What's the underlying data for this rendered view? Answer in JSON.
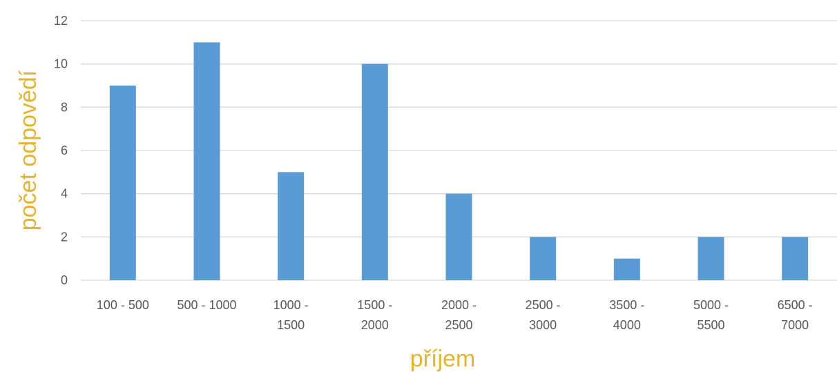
{
  "chart_data": {
    "type": "bar",
    "xlabel": "příjem",
    "ylabel": "počet odpovědí",
    "ylim": [
      0,
      12
    ],
    "y_ticks": [
      0,
      2,
      4,
      6,
      8,
      10,
      12
    ],
    "categories": [
      [
        "100 - 500"
      ],
      [
        "500 - 1000"
      ],
      [
        "1000 -",
        "1500"
      ],
      [
        "1500 -",
        "2000"
      ],
      [
        "2000 -",
        "2500"
      ],
      [
        "2500 -",
        "3000"
      ],
      [
        "3500 -",
        "4000"
      ],
      [
        "5000 -",
        "5500"
      ],
      [
        "6500 -",
        "7000"
      ]
    ],
    "values": [
      9,
      11,
      5,
      10,
      4,
      2,
      1,
      2,
      2
    ],
    "grid": true,
    "legend": "none",
    "colors": {
      "bar": "#5b9bd5",
      "axis_title": "#e4b432",
      "grid": "#d9d9d9",
      "tick_text": "#595959"
    }
  }
}
